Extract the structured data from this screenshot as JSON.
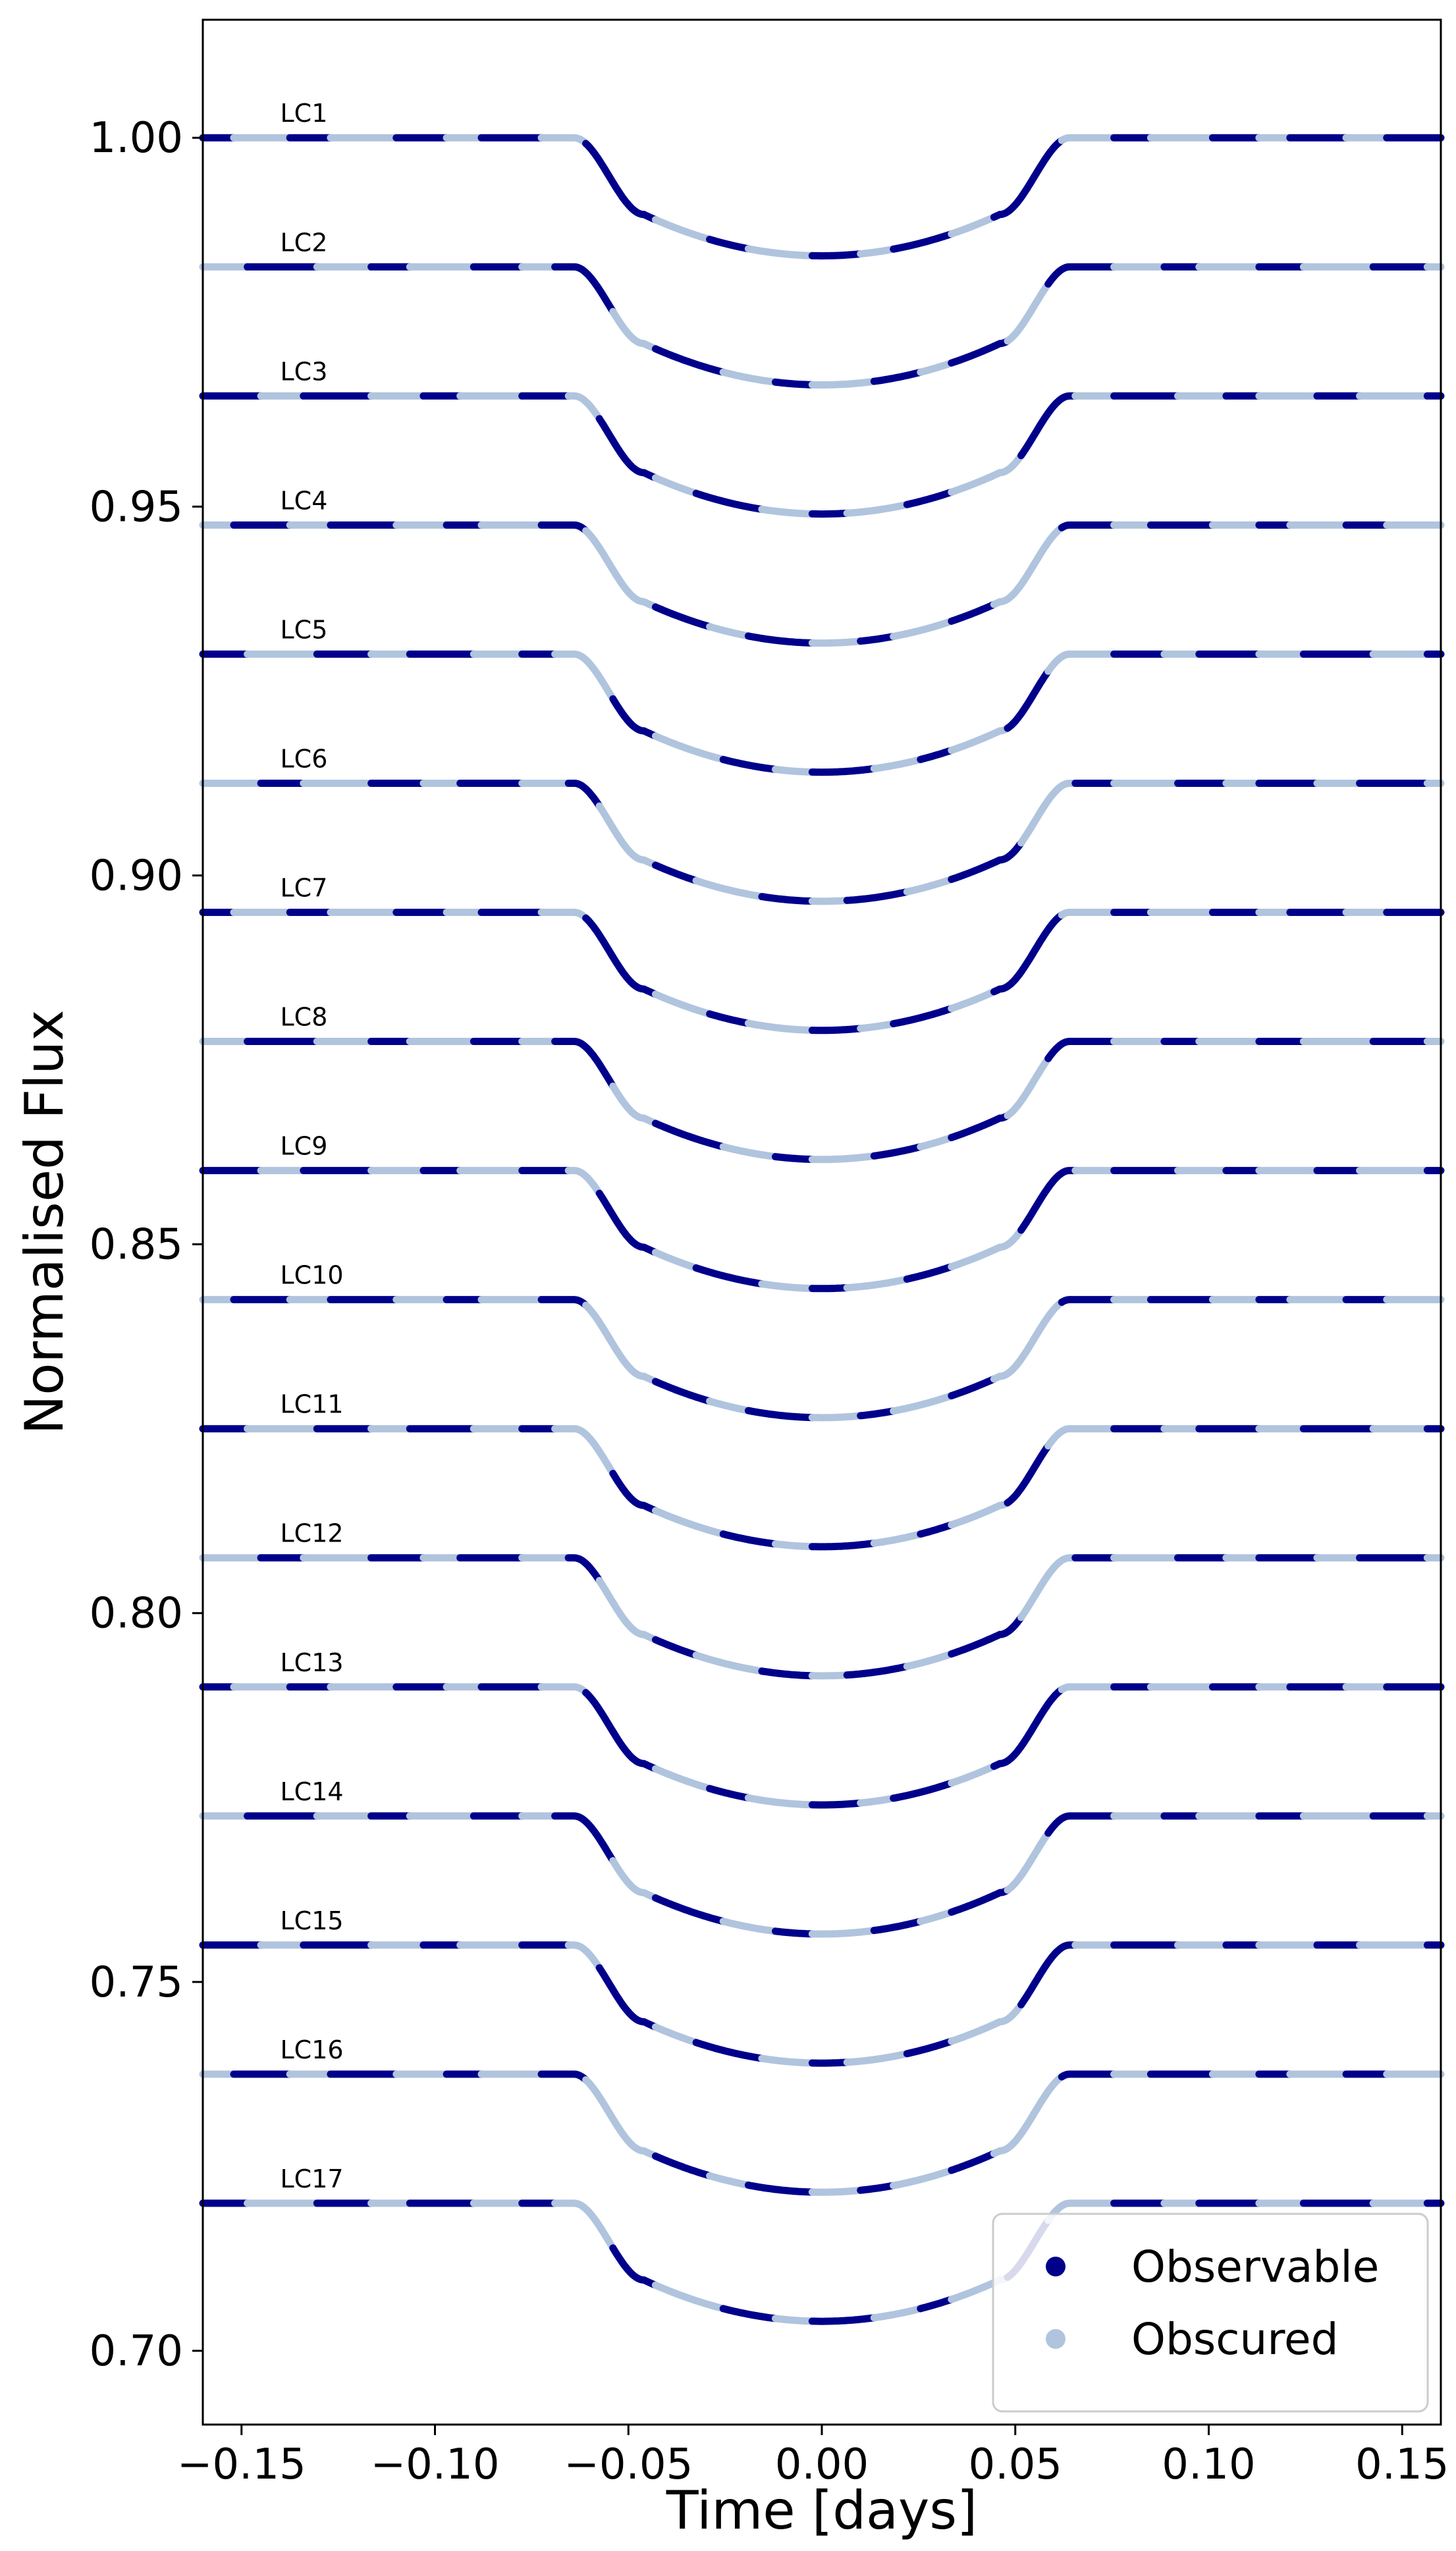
{
  "chart_data": {
    "type": "line",
    "xlabel": "Time [days]",
    "ylabel": "Normalised Flux",
    "xlim": [
      -0.16,
      0.16
    ],
    "ylim": [
      0.69,
      1.016
    ],
    "xticks": [
      -0.15,
      -0.1,
      -0.05,
      0.0,
      0.05,
      0.1,
      0.15
    ],
    "xtick_labels": [
      "−0.15",
      "−0.10",
      "−0.05",
      "0.00",
      "0.05",
      "0.10",
      "0.15"
    ],
    "yticks": [
      0.7,
      0.75,
      0.8,
      0.85,
      0.9,
      0.95,
      1.0
    ],
    "ytick_labels": [
      "0.70",
      "0.75",
      "0.80",
      "0.85",
      "0.90",
      "0.95",
      "1.00"
    ],
    "grid": false,
    "legend": {
      "placement": "lower-right",
      "entries": [
        {
          "name": "Observable",
          "color": "#00008b"
        },
        {
          "name": "Obscured",
          "color": "#b0c4de"
        }
      ]
    },
    "colors": {
      "observable": "#00008b",
      "obscured": "#b0c4de"
    },
    "transit_model": {
      "t14_half": 0.064,
      "t23_half": 0.046,
      "depth": 0.016,
      "curvature": 0.35
    },
    "label_x": -0.14,
    "curves": [
      {
        "label": "LC1",
        "baseline": 1.0
      },
      {
        "label": "LC2",
        "baseline": 0.9825
      },
      {
        "label": "LC3",
        "baseline": 0.965
      },
      {
        "label": "LC4",
        "baseline": 0.9475
      },
      {
        "label": "LC5",
        "baseline": 0.93
      },
      {
        "label": "LC6",
        "baseline": 0.9125
      },
      {
        "label": "LC7",
        "baseline": 0.895
      },
      {
        "label": "LC8",
        "baseline": 0.8775
      },
      {
        "label": "LC9",
        "baseline": 0.86
      },
      {
        "label": "LC10",
        "baseline": 0.8425
      },
      {
        "label": "LC11",
        "baseline": 0.825
      },
      {
        "label": "LC12",
        "baseline": 0.8075
      },
      {
        "label": "LC13",
        "baseline": 0.79
      },
      {
        "label": "LC14",
        "baseline": 0.7725
      },
      {
        "label": "LC15",
        "baseline": 0.755
      },
      {
        "label": "LC16",
        "baseline": 0.7375
      },
      {
        "label": "LC17",
        "baseline": 0.72
      }
    ]
  }
}
